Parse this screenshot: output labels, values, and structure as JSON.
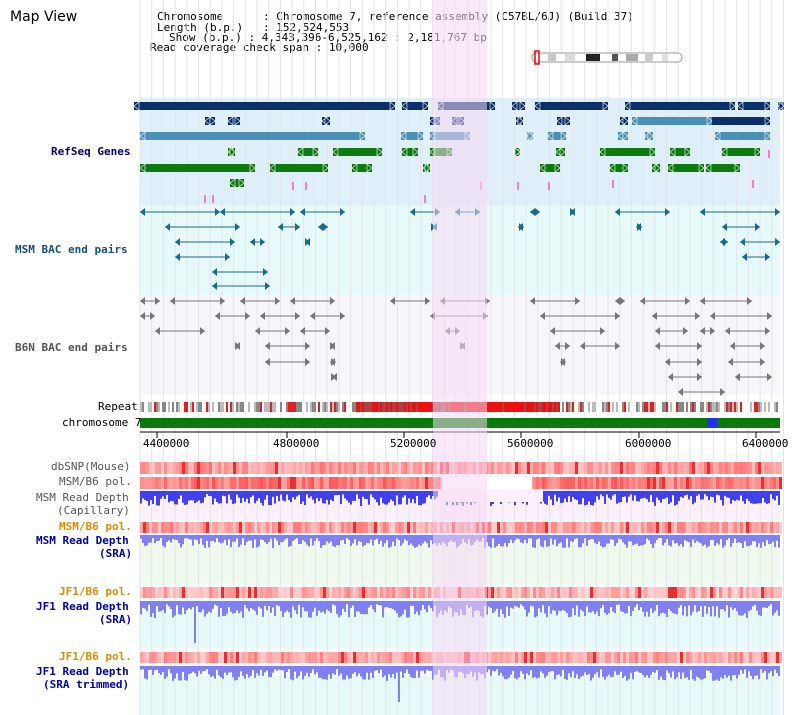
{
  "page_title": "Map View",
  "info": {
    "chromosome_key": "Chromosome",
    "chromosome_val": "Chromosome 7, reference assembly (C57BL/6J) (Build 37)",
    "length_key": "Length (b.p.)",
    "length_val": "152,524,553",
    "show_key": "Show (b.p.)",
    "show_val": "4,343,396-6,525,162 : 2,181,767 bp",
    "coverage_key": "Read coverage check span",
    "coverage_val": "10,000"
  },
  "tracks": {
    "refseq": "RefSeq Genes",
    "msm_bac": "MSM BAC end pairs",
    "b6n_bac": "B6N BAC end pairs",
    "repeat": "Repeat",
    "chromosome": "chromosome 7",
    "dbsnp": "dbSNP(Mouse)",
    "msm_b6_pol_1": "MSM/B6 pol.",
    "msm_read_depth_cap_1": "MSM Read Depth",
    "msm_read_depth_cap_2": "(Capillary)",
    "msm_b6_pol_2": "MSM/B6 pol.",
    "msm_read_depth_sra_1": "MSM Read Depth",
    "msm_read_depth_sra_2": "(SRA)",
    "jf1_b6_pol_1": "JF1/B6 pol.",
    "jf1_read_depth_sra_1": "JF1 Read Depth",
    "jf1_read_depth_sra_2": "(SRA)",
    "jf1_b6_pol_2": "JF1/B6 pol.",
    "jf1_read_depth_trim_1": "JF1 Read Depth",
    "jf1_read_depth_trim_2": "(SRA trimmed)"
  },
  "axis": {
    "ticks": [
      "4400000",
      "4800000",
      "5200000",
      "5600000",
      "6000000",
      "6400000"
    ]
  },
  "colors": {
    "highlight": "#f6d8f4",
    "refseq_bg": "#dff0fa",
    "bac_bg": "#e6fafa",
    "gene_navy": "#0b2f6b",
    "gene_steel": "#4a8fb5",
    "gene_green": "#0d7a0d",
    "chromosome_bar": "#0a7a0a",
    "depth_blue": "#4040ee",
    "depth_light": "#8080f0"
  }
}
